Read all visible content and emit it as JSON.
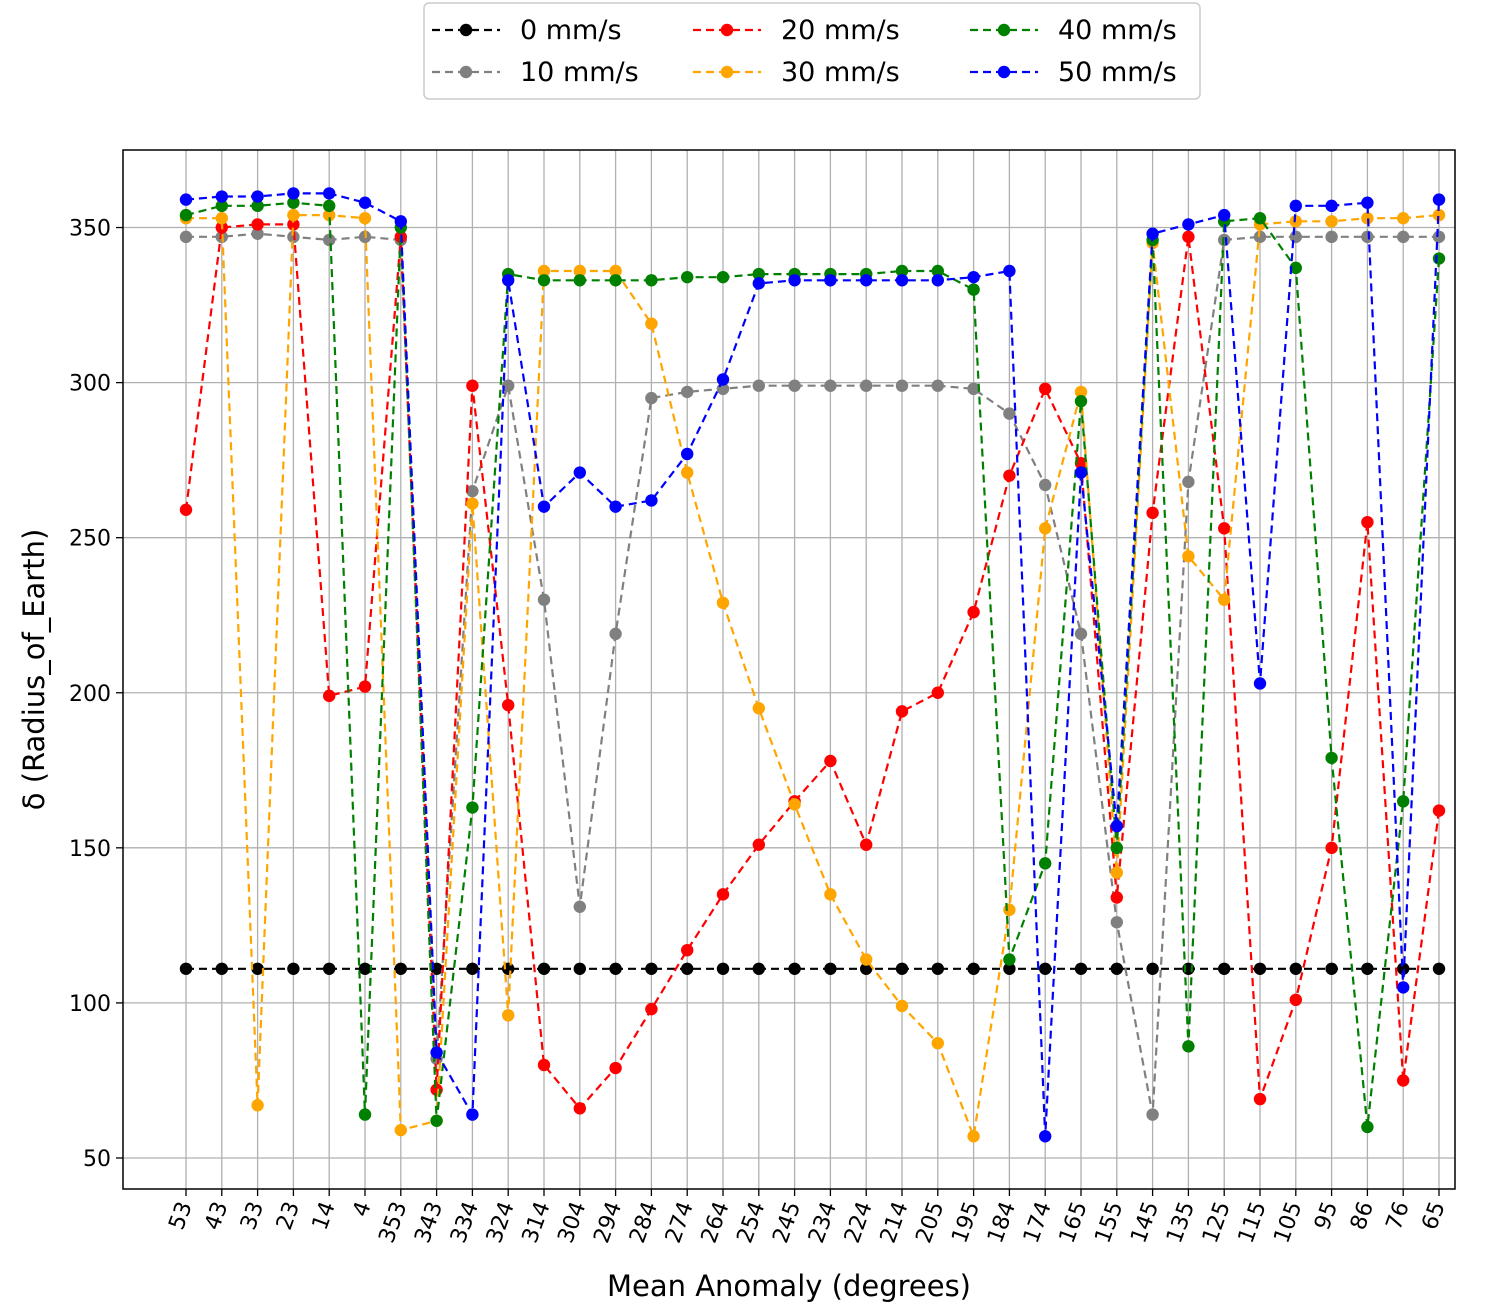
{
  "chart_data": {
    "type": "line",
    "xlabel": "Mean Anomaly (degrees)",
    "ylabel": "δ (Radius_of_Earth)",
    "categories": [
      "53",
      "43",
      "33",
      "23",
      "14",
      "4",
      "353",
      "343",
      "334",
      "324",
      "314",
      "304",
      "294",
      "284",
      "274",
      "264",
      "254",
      "245",
      "234",
      "224",
      "214",
      "205",
      "195",
      "184",
      "174",
      "165",
      "155",
      "145",
      "135",
      "125",
      "115",
      "105",
      "95",
      "86",
      "76",
      "65"
    ],
    "ylim": [
      40,
      375
    ],
    "yticks": [
      50,
      100,
      150,
      200,
      250,
      300,
      350
    ],
    "grid": true,
    "legend_position": "top-center",
    "line_style": "dashed with circle markers",
    "series": [
      {
        "name": "0 mm/s",
        "color": "#000000",
        "values": [
          111,
          111,
          111,
          111,
          111,
          111,
          111,
          111,
          111,
          111,
          111,
          111,
          111,
          111,
          111,
          111,
          111,
          111,
          111,
          111,
          111,
          111,
          111,
          111,
          111,
          111,
          111,
          111,
          111,
          111,
          111,
          111,
          111,
          111,
          111,
          111
        ]
      },
      {
        "name": "10 mm/s",
        "color": "#808080",
        "values": [
          347,
          347,
          348,
          347,
          346,
          347,
          346,
          82,
          265,
          299,
          230,
          131,
          219,
          295,
          297,
          298,
          299,
          299,
          299,
          299,
          299,
          299,
          298,
          290,
          267,
          219,
          126,
          64,
          268,
          346,
          347,
          347,
          347,
          347,
          347,
          347
        ]
      },
      {
        "name": "20 mm/s",
        "color": "#ff0000",
        "values": [
          259,
          350,
          351,
          351,
          199,
          202,
          347,
          72,
          299,
          196,
          80,
          66,
          79,
          98,
          117,
          135,
          151,
          165,
          178,
          151,
          194,
          200,
          226,
          270,
          298,
          274,
          134,
          258,
          347,
          253,
          69,
          101,
          150,
          255,
          75,
          162
        ]
      },
      {
        "name": "30 mm/s",
        "color": "#ffa500",
        "values": [
          353,
          353,
          67,
          354,
          354,
          353,
          59,
          62,
          261,
          96,
          336,
          336,
          336,
          319,
          271,
          229,
          195,
          164,
          135,
          114,
          99,
          87,
          57,
          130,
          253,
          297,
          142,
          345,
          244,
          230,
          351,
          352,
          352,
          353,
          353,
          354
        ]
      },
      {
        "name": "40 mm/s",
        "color": "#008000",
        "values": [
          354,
          357,
          357,
          358,
          357,
          64,
          350,
          62,
          163,
          335,
          333,
          333,
          333,
          333,
          334,
          334,
          335,
          335,
          335,
          335,
          336,
          336,
          330,
          114,
          145,
          294,
          150,
          346,
          86,
          352,
          353,
          337,
          179,
          60,
          165,
          340
        ]
      },
      {
        "name": "50 mm/s",
        "color": "#0000ff",
        "values": [
          359,
          360,
          360,
          361,
          361,
          358,
          352,
          84,
          64,
          333,
          260,
          271,
          260,
          262,
          277,
          301,
          332,
          333,
          333,
          333,
          333,
          333,
          334,
          336,
          57,
          271,
          157,
          348,
          351,
          354,
          203,
          357,
          357,
          358,
          105,
          359
        ]
      }
    ]
  }
}
